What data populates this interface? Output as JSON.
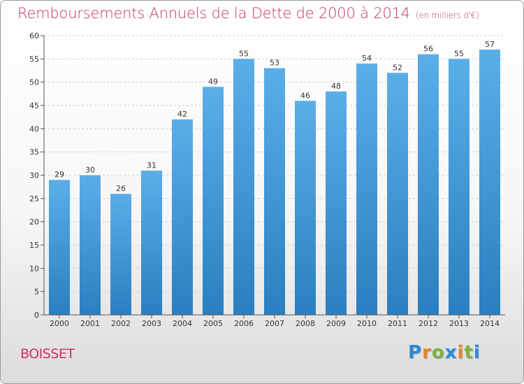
{
  "header": {
    "title": "Remboursements Annuels de la Dette de 2000 à 2014",
    "subtitle": "(en milliers d'€)"
  },
  "commune": "BOISSET",
  "logo": {
    "letters": [
      "P",
      "r",
      "o",
      "x",
      "i",
      "t",
      "i"
    ],
    "colors": [
      "#2a8ad8",
      "#e6842b",
      "#7cb342",
      "#2a8ad8",
      "#e6842b",
      "#7cb342",
      "#2a8ad8"
    ]
  },
  "colors": {
    "bar_top": "#5aaee8",
    "bar_bottom": "#2a7fc0",
    "grid": "#cfcfcf",
    "axis": "#555555"
  },
  "chart_data": {
    "type": "bar",
    "title": "Remboursements Annuels de la Dette de 2000 à 2014",
    "xlabel": "",
    "ylabel": "",
    "categories": [
      "2000",
      "2001",
      "2002",
      "2003",
      "2004",
      "2005",
      "2006",
      "2007",
      "2008",
      "2009",
      "2010",
      "2011",
      "2012",
      "2013",
      "2014"
    ],
    "values": [
      29,
      30,
      26,
      31,
      42,
      49,
      55,
      53,
      46,
      48,
      54,
      52,
      56,
      55,
      57
    ],
    "ylim": [
      0,
      60
    ],
    "yticks": [
      0,
      5,
      10,
      15,
      20,
      25,
      30,
      35,
      40,
      45,
      50,
      55,
      60
    ],
    "grid": true
  }
}
